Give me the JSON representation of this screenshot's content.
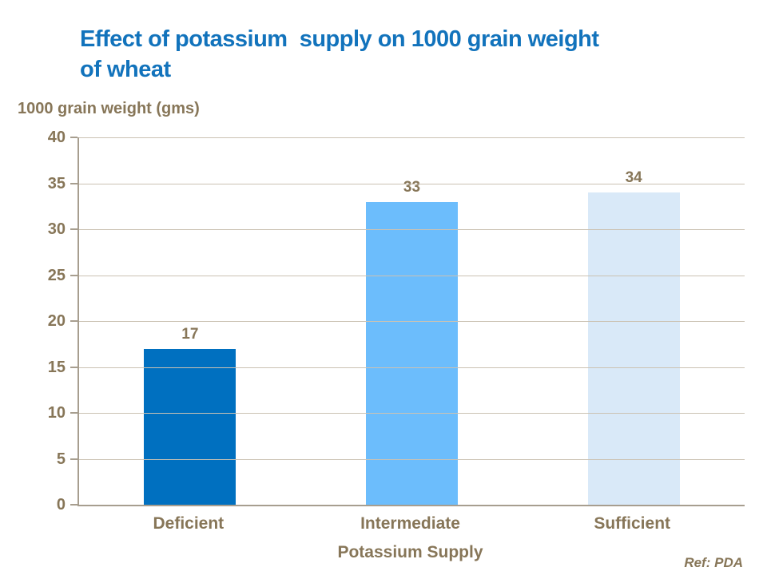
{
  "slide": {
    "title": "Effect of potassium  supply on 1000 grain weight\nof wheat",
    "ref_note": "Ref: PDA"
  },
  "colors": {
    "title_text": "#1273BC",
    "chart_text": "#877658",
    "axis_line": "#A79E8F",
    "gridline": "#CBC2B3"
  },
  "chart_data": {
    "type": "bar",
    "title": "Effect of potassium  supply on 1000 grain weight of wheat",
    "categories": [
      "Deficient",
      "Intermediate",
      "Sufficient"
    ],
    "values": [
      17,
      33,
      34
    ],
    "data_labels": [
      "17",
      "33",
      "34"
    ],
    "bar_colors": [
      "#0070C0",
      "#6CBDFC",
      "#D9E9F8"
    ],
    "xlabel": "Potassium Supply",
    "ylabel": "1000 grain weight (gms)",
    "ylim": [
      0,
      40
    ],
    "yticks": [
      0,
      5,
      10,
      15,
      20,
      25,
      30,
      35,
      40
    ],
    "grid": "horizontal",
    "legend": "none"
  }
}
